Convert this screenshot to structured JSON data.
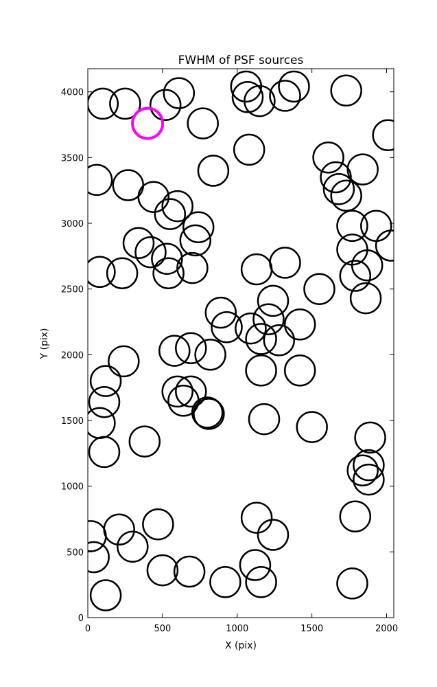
{
  "chart_data": {
    "type": "scatter",
    "title": "FWHM of PSF sources",
    "xlabel": "X (pix)",
    "ylabel": "Y (pix)",
    "xlim": [
      0,
      2048
    ],
    "ylim": [
      0,
      4176
    ],
    "xticks": [
      0,
      500,
      1000,
      1500,
      2000
    ],
    "yticks": [
      0,
      500,
      1000,
      1500,
      2000,
      2500,
      3000,
      3500,
      4000
    ],
    "marker": "open-circle",
    "grid": false,
    "legend": "none",
    "colors": {
      "normal": "#000000",
      "highlight": "#ff00ff"
    },
    "series": [
      {
        "marker_color": "#000000",
        "points": [
          [
            100,
            3910
          ],
          [
            250,
            3910
          ],
          [
            520,
            3900
          ],
          [
            610,
            3990
          ],
          [
            1060,
            4040
          ],
          [
            1070,
            3960
          ],
          [
            1150,
            3930
          ],
          [
            1320,
            3970
          ],
          [
            1380,
            4040
          ],
          [
            1730,
            4010
          ],
          [
            770,
            3760
          ],
          [
            1080,
            3560
          ],
          [
            2010,
            3670
          ],
          [
            60,
            3330
          ],
          [
            270,
            3290
          ],
          [
            840,
            3400
          ],
          [
            1610,
            3500
          ],
          [
            1660,
            3350
          ],
          [
            1680,
            3260
          ],
          [
            1730,
            3210
          ],
          [
            1840,
            3410
          ],
          [
            440,
            3200
          ],
          [
            600,
            3130
          ],
          [
            550,
            3070
          ],
          [
            740,
            2970
          ],
          [
            720,
            2870
          ],
          [
            1770,
            2980
          ],
          [
            1930,
            2980
          ],
          [
            2030,
            2830
          ],
          [
            340,
            2850
          ],
          [
            420,
            2780
          ],
          [
            530,
            2730
          ],
          [
            540,
            2620
          ],
          [
            700,
            2660
          ],
          [
            80,
            2630
          ],
          [
            230,
            2620
          ],
          [
            1130,
            2650
          ],
          [
            1320,
            2700
          ],
          [
            1770,
            2800
          ],
          [
            1870,
            2680
          ],
          [
            1790,
            2600
          ],
          [
            1860,
            2430
          ],
          [
            1550,
            2500
          ],
          [
            1240,
            2410
          ],
          [
            890,
            2320
          ],
          [
            930,
            2210
          ],
          [
            1090,
            2200
          ],
          [
            1210,
            2270
          ],
          [
            1420,
            2230
          ],
          [
            1160,
            2120
          ],
          [
            1280,
            2110
          ],
          [
            580,
            2030
          ],
          [
            690,
            2050
          ],
          [
            820,
            2000
          ],
          [
            240,
            1950
          ],
          [
            120,
            1800
          ],
          [
            110,
            1640
          ],
          [
            80,
            1480
          ],
          [
            1160,
            1880
          ],
          [
            1420,
            1880
          ],
          [
            600,
            1720
          ],
          [
            690,
            1720
          ],
          [
            640,
            1650
          ],
          [
            800,
            1560
          ],
          [
            810,
            1550
          ],
          [
            1180,
            1510
          ],
          [
            1500,
            1450
          ],
          [
            380,
            1340
          ],
          [
            110,
            1260
          ],
          [
            1890,
            1370
          ],
          [
            1880,
            1160
          ],
          [
            1840,
            1120
          ],
          [
            1880,
            1050
          ],
          [
            1790,
            770
          ],
          [
            1130,
            760
          ],
          [
            1240,
            630
          ],
          [
            470,
            710
          ],
          [
            210,
            670
          ],
          [
            20,
            620
          ],
          [
            300,
            540
          ],
          [
            40,
            460
          ],
          [
            1120,
            400
          ],
          [
            1160,
            270
          ],
          [
            500,
            360
          ],
          [
            680,
            350
          ],
          [
            920,
            270
          ],
          [
            120,
            170
          ],
          [
            1770,
            260
          ]
        ]
      },
      {
        "marker_color": "#ff00ff",
        "points": [
          [
            400,
            3760
          ]
        ]
      }
    ]
  }
}
